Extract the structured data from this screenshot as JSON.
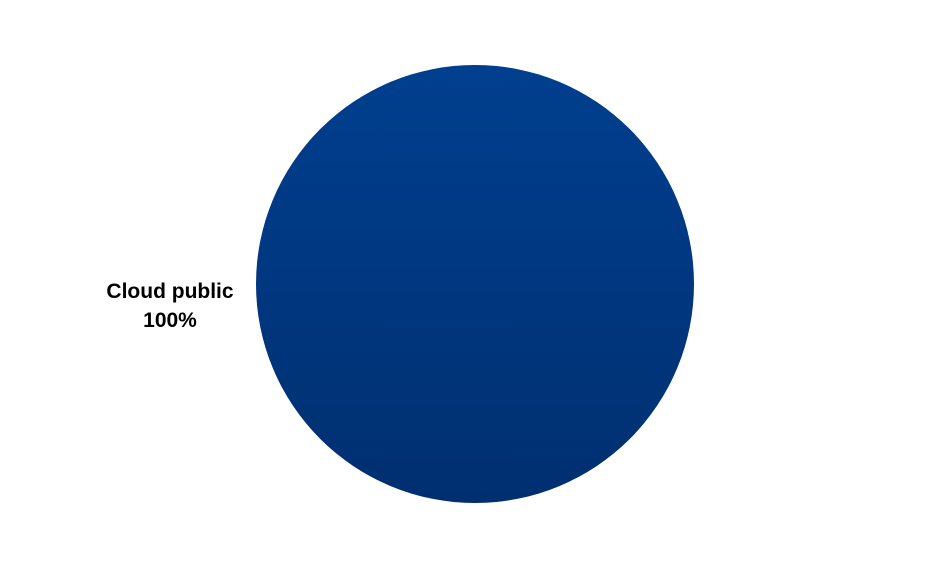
{
  "chart_data": {
    "type": "pie",
    "title": "",
    "slices": [
      {
        "label": "Cloud public",
        "value": 100,
        "value_label": "100%",
        "color": "#003a85"
      }
    ],
    "legend": "none"
  }
}
